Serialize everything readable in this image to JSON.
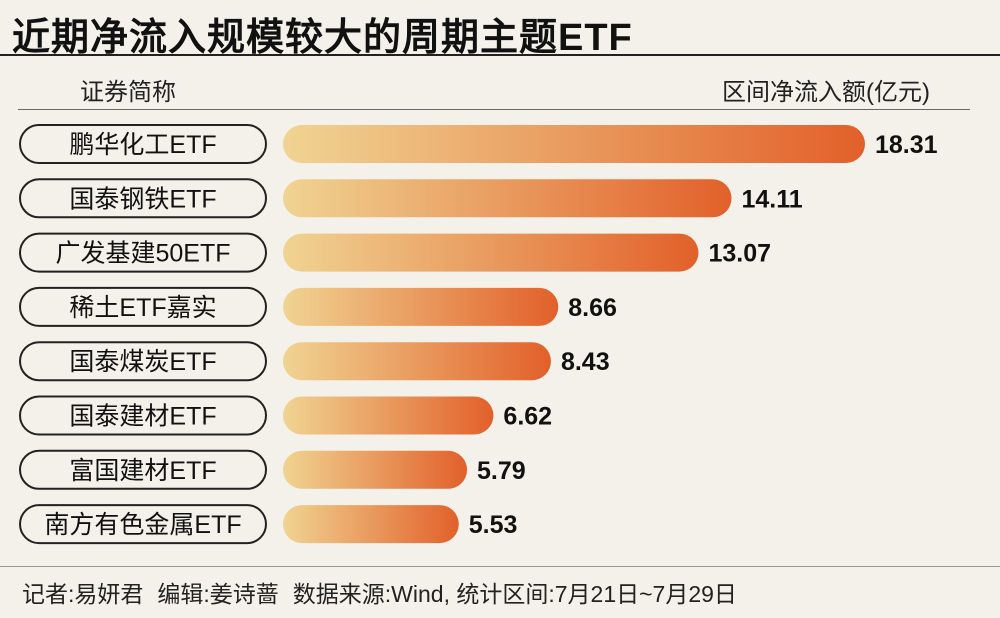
{
  "title": "近期净流入规模较大的周期主题ETF",
  "header": {
    "left": "证券简称",
    "right": "区间净流入额(亿元)"
  },
  "footer": {
    "reporter": "记者:易妍君",
    "editor": "编辑:姜诗蔷",
    "source": "数据来源:Wind, 统计区间:7月21日~7月29日"
  },
  "colors": {
    "bar_start": "#f0d492",
    "bar_end": "#e2602a",
    "background": "#f3f1ea"
  },
  "chart_data": {
    "type": "bar",
    "orientation": "horizontal",
    "categories": [
      "鹏华化工ETF",
      "国泰钢铁ETF",
      "广发基建50ETF",
      "稀土ETF嘉实",
      "国泰煤炭ETF",
      "国泰建材ETF",
      "富国建材ETF",
      "南方有色金属ETF"
    ],
    "values": [
      18.31,
      14.11,
      13.07,
      8.66,
      8.43,
      6.62,
      5.79,
      5.53
    ],
    "value_labels": [
      "18.31",
      "14.11",
      "13.07",
      "8.66",
      "8.43",
      "6.62",
      "5.79",
      "5.53"
    ],
    "xlabel": "区间净流入额(亿元)",
    "ylabel": "证券简称",
    "xlim": [
      0,
      18.31
    ],
    "grid": false,
    "legend": "none"
  }
}
